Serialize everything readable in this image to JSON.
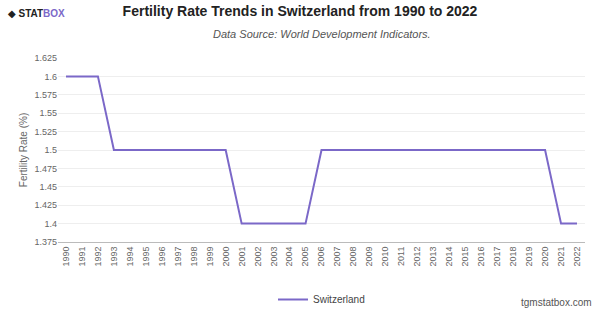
{
  "chart_data": {
    "type": "line",
    "title": "Fertility Rate Trends in Switzerland from 1990 to 2022",
    "subtitle": "Data Source: World Development Indicators.",
    "y_label": "Fertility Rate (%)",
    "x": [
      1990,
      1991,
      1992,
      1993,
      1994,
      1995,
      1996,
      1997,
      1998,
      1999,
      2000,
      2001,
      2002,
      2003,
      2004,
      2005,
      2006,
      2007,
      2008,
      2009,
      2010,
      2011,
      2012,
      2013,
      2014,
      2015,
      2016,
      2017,
      2018,
      2019,
      2020,
      2021,
      2022
    ],
    "series": [
      {
        "name": "Switzerland",
        "color": "#7b68c8",
        "values": [
          1.6,
          1.6,
          1.6,
          1.5,
          1.5,
          1.5,
          1.5,
          1.5,
          1.5,
          1.5,
          1.5,
          1.4,
          1.4,
          1.4,
          1.4,
          1.4,
          1.5,
          1.5,
          1.5,
          1.5,
          1.5,
          1.5,
          1.5,
          1.5,
          1.5,
          1.5,
          1.5,
          1.5,
          1.5,
          1.5,
          1.5,
          1.4,
          1.4
        ]
      }
    ],
    "xlim": [
      1989.5,
      2022.5
    ],
    "xticks": [
      1990,
      1991,
      1992,
      1993,
      1994,
      1995,
      1996,
      1997,
      1998,
      1999,
      2000,
      2001,
      2002,
      2003,
      2004,
      2005,
      2006,
      2007,
      2008,
      2009,
      2010,
      2011,
      2012,
      2013,
      2014,
      2015,
      2016,
      2017,
      2018,
      2019,
      2020,
      2021,
      2022
    ],
    "ylim": [
      1.375,
      1.625
    ],
    "yticks": [
      1.375,
      1.4,
      1.425,
      1.45,
      1.475,
      1.5,
      1.525,
      1.55,
      1.575,
      1.6,
      1.625
    ],
    "grid": true,
    "legend": "bottom",
    "annotations": [
      "◆ STAT",
      "BOX",
      "tgmstatbox.com"
    ]
  }
}
